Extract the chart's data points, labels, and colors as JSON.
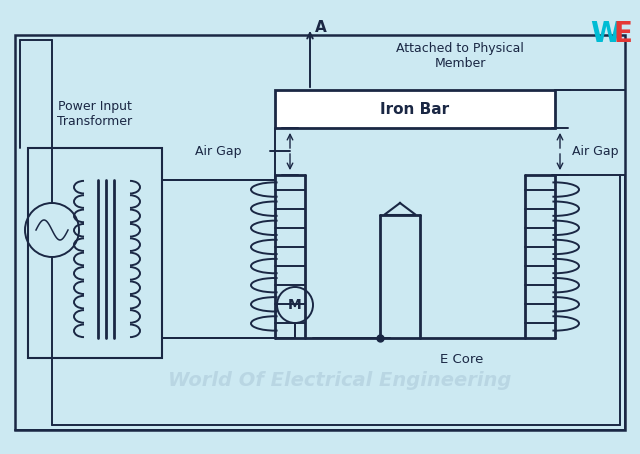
{
  "bg_color": "#cce9f2",
  "line_color": "#1a2744",
  "watermark": "World Of Electrical Engineering",
  "watermark_color": "#aac8d8",
  "logo_W_color": "#00bcd4",
  "logo_E_color": "#e53935",
  "labels": {
    "power_input": "Power Input\nTransformer",
    "air_gap_left": "Air Gap",
    "air_gap_right": "Air Gap",
    "iron_bar": "Iron Bar",
    "e_core": "E Core",
    "A_label": "A",
    "attached": "Attached to Physical\nMember",
    "M_label": "M"
  },
  "figsize": [
    6.4,
    4.54
  ],
  "dpi": 100
}
